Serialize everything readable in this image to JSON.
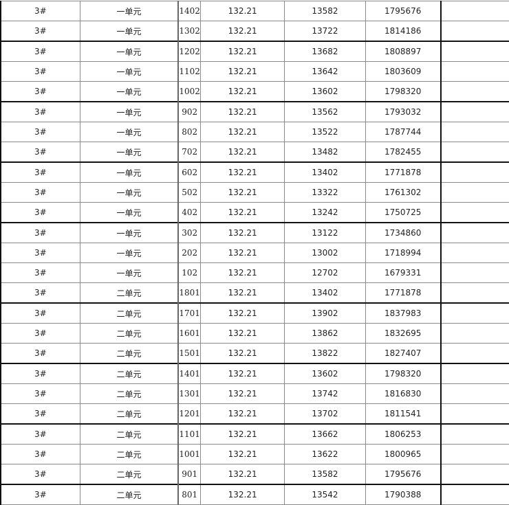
{
  "rows": [
    [
      "3#",
      "一单元",
      "1402",
      "132.21",
      "13582",
      "1795676",
      ""
    ],
    [
      "3#",
      "一单元",
      "1302",
      "132.21",
      "13722",
      "1814186",
      ""
    ],
    [
      "3#",
      "一单元",
      "1202",
      "132.21",
      "13682",
      "1808897",
      ""
    ],
    [
      "3#",
      "一单元",
      "1102",
      "132.21",
      "13642",
      "1803609",
      ""
    ],
    [
      "3#",
      "一单元",
      "1002",
      "132.21",
      "13602",
      "1798320",
      ""
    ],
    [
      "3#",
      "一单元",
      "902",
      "132.21",
      "13562",
      "1793032",
      ""
    ],
    [
      "3#",
      "一单元",
      "802",
      "132.21",
      "13522",
      "1787744",
      ""
    ],
    [
      "3#",
      "一单元",
      "702",
      "132.21",
      "13482",
      "1782455",
      ""
    ],
    [
      "3#",
      "一单元",
      "602",
      "132.21",
      "13402",
      "1771878",
      ""
    ],
    [
      "3#",
      "一单元",
      "502",
      "132.21",
      "13322",
      "1761302",
      ""
    ],
    [
      "3#",
      "一单元",
      "402",
      "132.21",
      "13242",
      "1750725",
      ""
    ],
    [
      "3#",
      "一单元",
      "302",
      "132.21",
      "13122",
      "1734860",
      ""
    ],
    [
      "3#",
      "一单元",
      "202",
      "132.21",
      "13002",
      "1718994",
      ""
    ],
    [
      "3#",
      "一单元",
      "102",
      "132.21",
      "12702",
      "1679331",
      ""
    ],
    [
      "3#",
      "二单元",
      "1801",
      "132.21",
      "13402",
      "1771878",
      ""
    ],
    [
      "3#",
      "二单元",
      "1701",
      "132.21",
      "13902",
      "1837983",
      ""
    ],
    [
      "3#",
      "二单元",
      "1601",
      "132.21",
      "13862",
      "1832695",
      ""
    ],
    [
      "3#",
      "二单元",
      "1501",
      "132.21",
      "13822",
      "1827407",
      ""
    ],
    [
      "3#",
      "二单元",
      "1401",
      "132.21",
      "13602",
      "1798320",
      ""
    ],
    [
      "3#",
      "二单元",
      "1301",
      "132.21",
      "13742",
      "1816830",
      ""
    ],
    [
      "3#",
      "二单元",
      "1201",
      "132.21",
      "13702",
      "1811541",
      ""
    ],
    [
      "3#",
      "二单元",
      "1101",
      "132.21",
      "13662",
      "1806253",
      ""
    ],
    [
      "3#",
      "二单元",
      "1001",
      "132.21",
      "13622",
      "1800965",
      ""
    ],
    [
      "3#",
      "二单元",
      "901",
      "132.21",
      "13582",
      "1795676",
      ""
    ],
    [
      "3#",
      "二单元",
      "801",
      "132.21",
      "13542",
      "1790388",
      ""
    ]
  ]
}
